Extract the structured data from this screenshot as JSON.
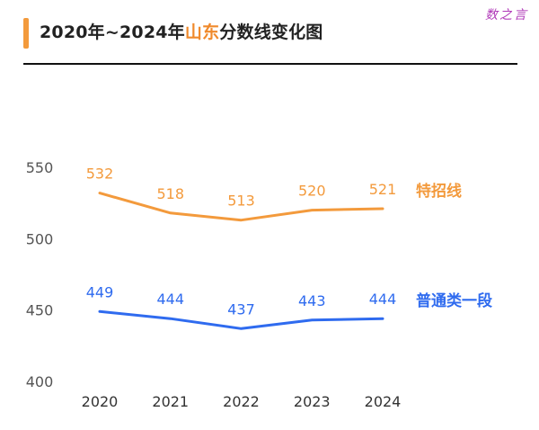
{
  "title": {
    "prefix": "2020年~2024年",
    "highlight": "山东",
    "suffix": "分数线变化图"
  },
  "top_watermark": "数之言",
  "colors": {
    "accent": "#f39a3c",
    "special": "#f39a3c",
    "regular": "#2f6bef"
  },
  "chart_data": {
    "type": "line",
    "x": [
      "2020",
      "2021",
      "2022",
      "2023",
      "2024"
    ],
    "y_ticks": [
      400,
      450,
      500,
      550
    ],
    "ylim": [
      400,
      560
    ],
    "series": [
      {
        "name": "特招线",
        "values": [
          532,
          518,
          513,
          520,
          521
        ]
      },
      {
        "name": "普通类一段",
        "values": [
          449,
          444,
          437,
          443,
          444
        ]
      }
    ]
  }
}
